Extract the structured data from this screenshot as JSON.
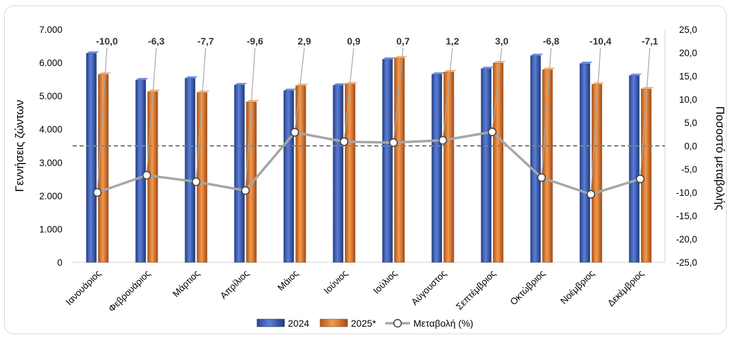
{
  "chart_data": {
    "type": "bar",
    "categories": [
      "Ιανουάριος",
      "Φεβρουάριος",
      "Μάρτιος",
      "Απρίλιος",
      "Μάιος",
      "Ιούνιος",
      "Ιούλιος",
      "Αύγουστος",
      "Σεπτέμβριος",
      "Οκτώβριος",
      "Νοέμβριος",
      "Δεκέμβριος"
    ],
    "series": [
      {
        "name": "2024",
        "color": "#3a5bb0",
        "values": [
          6280,
          5480,
          5530,
          5330,
          5160,
          5320,
          6100,
          5650,
          5820,
          6210,
          5970,
          5610
        ]
      },
      {
        "name": "2025*",
        "color": "#e07a2c",
        "values": [
          5650,
          5130,
          5100,
          4820,
          5310,
          5360,
          6140,
          5720,
          5990,
          5790,
          5350,
          5210
        ]
      },
      {
        "name": "Μεταβολή (%)",
        "type": "line",
        "axis": "right",
        "color": "#a6a6a6",
        "values": [
          -10.0,
          -6.3,
          -7.7,
          -9.6,
          2.9,
          0.9,
          0.7,
          1.2,
          3.0,
          -6.8,
          -10.4,
          -7.1
        ],
        "labels": [
          "-10,0",
          "-6,3",
          "-7,7",
          "-9,6",
          "2,9",
          "0,9",
          "0,7",
          "1,2",
          "3,0",
          "-6,8",
          "-10,4",
          "-7,1"
        ]
      }
    ],
    "ylabel": "Γεννήσεις ζώντων",
    "y2label": "Ποσοστό μεταβολής",
    "ylim": [
      0,
      7000
    ],
    "y2lim": [
      -25.0,
      25.0
    ],
    "yticks": [
      "0",
      "1.000",
      "2.000",
      "3.000",
      "4.000",
      "5.000",
      "6.000",
      "7.000"
    ],
    "y2ticks": [
      "-25,0",
      "-20,0",
      "-15,0",
      "-10,0",
      "-5,0",
      "0,0",
      "5,0",
      "10,0",
      "15,0",
      "20,0",
      "25,0"
    ],
    "zero_line": "dashed",
    "grid": false,
    "legend_position": "bottom"
  }
}
